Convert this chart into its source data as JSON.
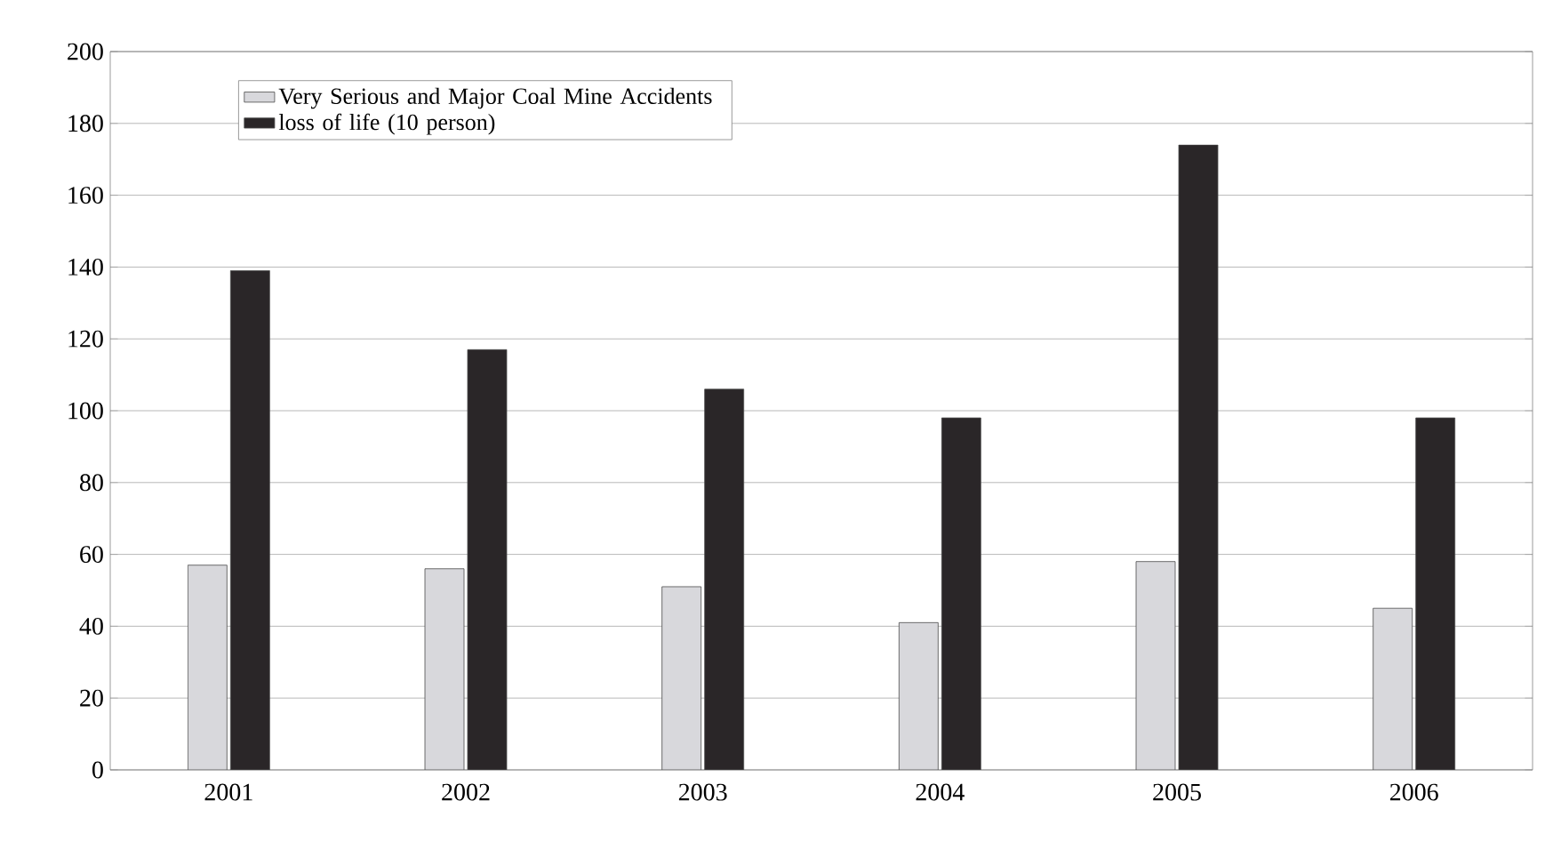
{
  "chart_data": {
    "type": "bar",
    "categories": [
      "2001",
      "2002",
      "2003",
      "2004",
      "2005",
      "2006"
    ],
    "series": [
      {
        "name": "Very Serious and Major Coal Mine Accidents",
        "color": "#d8d8dc",
        "values": [
          57,
          56,
          51,
          41,
          58,
          45
        ]
      },
      {
        "name": "loss of life (10 person)",
        "color": "#2a2628",
        "values": [
          139,
          117,
          106,
          98,
          174,
          98
        ]
      }
    ],
    "ylim": [
      0,
      200
    ],
    "yticks": [
      0,
      20,
      40,
      60,
      80,
      100,
      120,
      140,
      160,
      180,
      200
    ],
    "grid": "y",
    "legend": "top left"
  }
}
